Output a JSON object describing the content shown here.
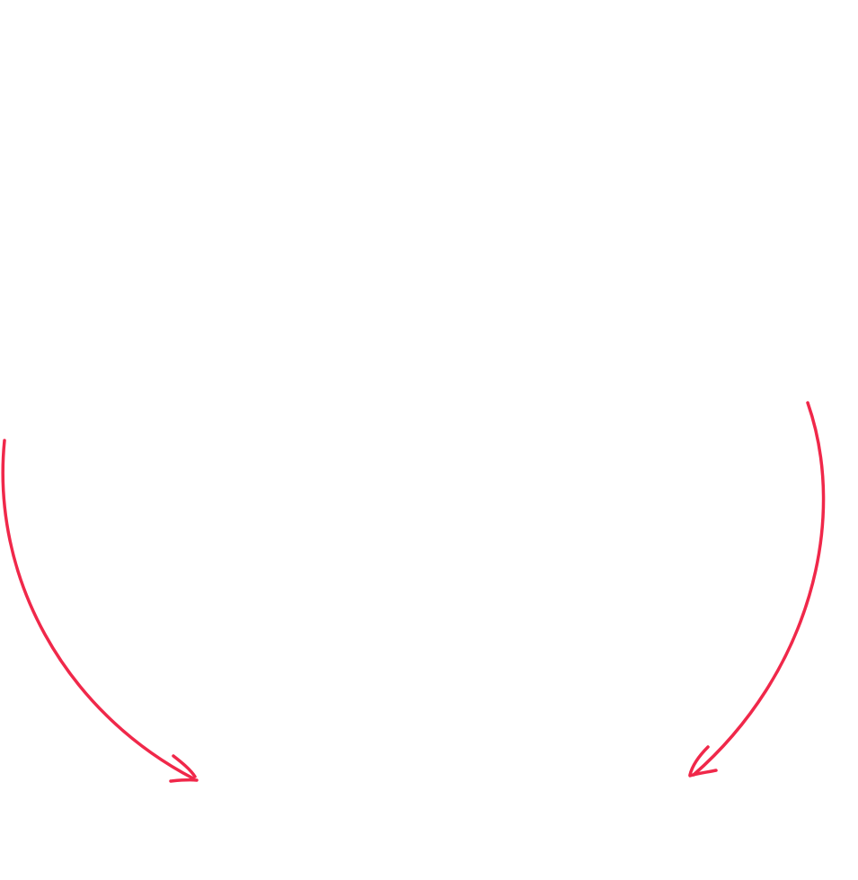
{
  "arrow_color": "#f0284a",
  "arrows": [
    {
      "id": "left-curved-arrow",
      "direction": "down-right",
      "icon": "curved-arrow-icon"
    },
    {
      "id": "right-curved-arrow",
      "direction": "down-left",
      "icon": "curved-arrow-icon"
    }
  ]
}
